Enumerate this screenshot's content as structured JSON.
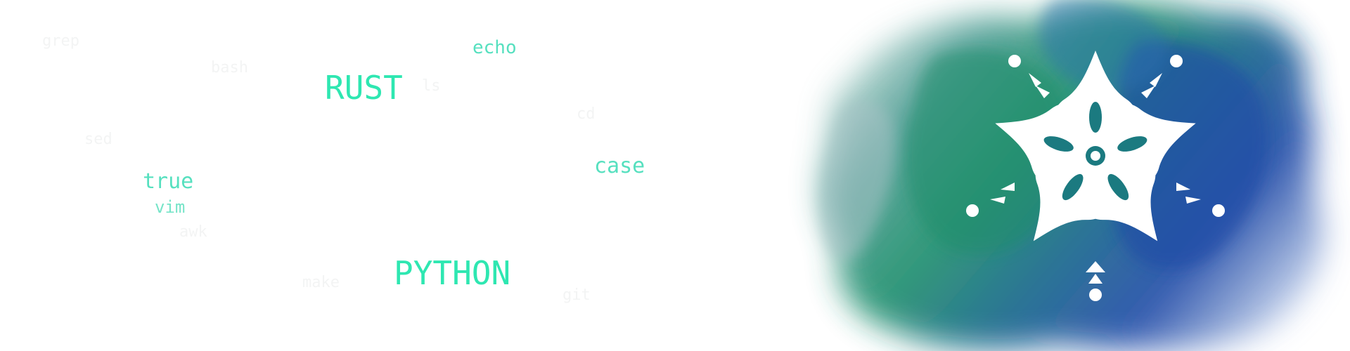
{
  "words": {
    "echo": "echo",
    "rust": "RUST",
    "true": "true",
    "vim": "vim",
    "case": "case",
    "python": "PYTHON"
  },
  "colors": {
    "word_teal": "#56e0bf",
    "word_bright": "#2ee7b1",
    "watercolor_green": "#1a8f6c",
    "watercolor_blue": "#1e49a8",
    "emblem": "#ffffff"
  },
  "icons": {
    "emblem": "white-floral-star-icon"
  }
}
